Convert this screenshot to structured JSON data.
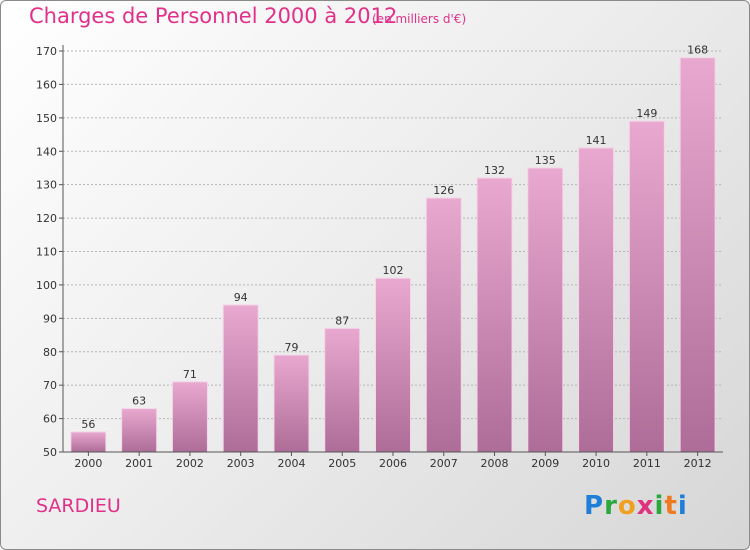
{
  "header": {
    "title": "Charges de Personnel 2000 à 2012",
    "unit": "(en milliers d'€)"
  },
  "footer": {
    "commune": "SARDIEU",
    "logo_letters": [
      "P",
      "r",
      "o",
      "x",
      "i",
      "t",
      "i"
    ]
  },
  "colors": {
    "title": "#e0308a",
    "bar_top": "#e8a8cf",
    "bar_bottom": "#ad6d98",
    "logo": [
      "#1f7fd8",
      "#2aa83d",
      "#f0a020",
      "#e03080",
      "#2aa83d",
      "#f07a20",
      "#1f7fd8"
    ]
  },
  "chart_data": {
    "type": "bar",
    "title": "Charges de Personnel 2000 à 2012",
    "subtitle": "(en milliers d'€)",
    "categories": [
      "2000",
      "2001",
      "2002",
      "2003",
      "2004",
      "2005",
      "2006",
      "2007",
      "2008",
      "2009",
      "2010",
      "2011",
      "2012"
    ],
    "values": [
      56,
      63,
      71,
      94,
      79,
      87,
      102,
      126,
      132,
      135,
      141,
      149,
      168
    ],
    "ylim": [
      50,
      170
    ],
    "yticks": [
      50,
      60,
      70,
      80,
      90,
      100,
      110,
      120,
      130,
      140,
      150,
      160,
      170
    ],
    "grid": true,
    "data_labels": true
  }
}
